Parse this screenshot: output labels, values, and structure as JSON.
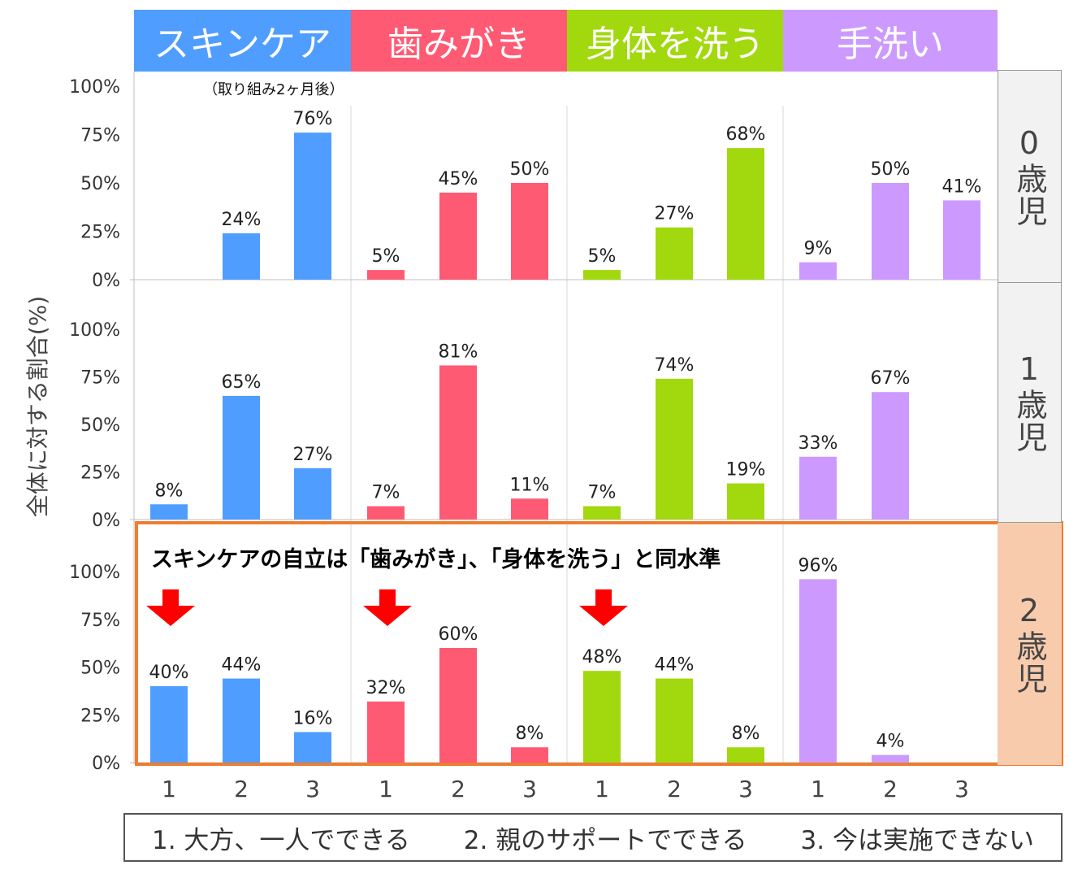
{
  "chart_data": {
    "type": "bar",
    "ylabel": "全体に対する割合(%)",
    "ylim": [
      0,
      100
    ],
    "yticks": [
      "0%",
      "25%",
      "50%",
      "75%",
      "100%"
    ],
    "x_tick_labels": [
      "1",
      "2",
      "3"
    ],
    "categories": [
      "スキンケア",
      "歯みがき",
      "身体を洗う",
      "手洗い"
    ],
    "category_colors": [
      "#4f9dff",
      "#ff5a73",
      "#a2d80e",
      "#cc99ff"
    ],
    "rows": [
      {
        "label": "0歳児",
        "values": [
          [
            null,
            24,
            76
          ],
          [
            5,
            45,
            50
          ],
          [
            5,
            27,
            68
          ],
          [
            9,
            50,
            41
          ]
        ]
      },
      {
        "label": "1歳児",
        "values": [
          [
            8,
            65,
            27
          ],
          [
            7,
            81,
            11
          ],
          [
            7,
            74,
            19
          ],
          [
            33,
            67,
            null
          ]
        ]
      },
      {
        "label": "2歳児",
        "values": [
          [
            40,
            44,
            16
          ],
          [
            32,
            60,
            8
          ],
          [
            48,
            44,
            8
          ],
          [
            96,
            4,
            null
          ]
        ],
        "highlighted": true
      }
    ],
    "grid": false,
    "note": "（取り組み2ヶ月後）",
    "annotation": "スキンケアの自立は「歯みがき」、「身体を洗う」と同水準",
    "annotation_arrows": [
      "スキンケア",
      "歯みがき",
      "身体を洗う"
    ],
    "arrow_color": "#ff0000",
    "highlight_color": "#ed7d31",
    "legend": [
      "1. 大方、一人でできる",
      "2. 親のサポートでできる",
      "3. 今は実施できない"
    ]
  }
}
